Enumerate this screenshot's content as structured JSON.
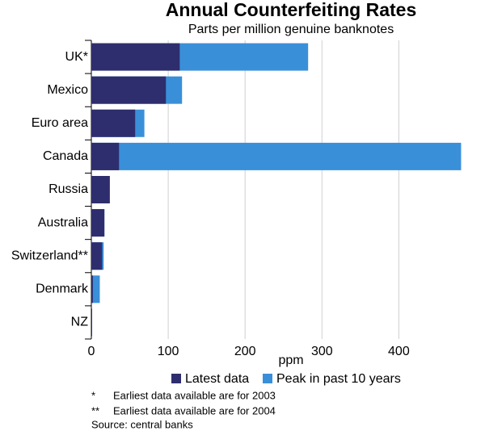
{
  "chart_data": {
    "type": "bar",
    "orientation": "horizontal",
    "overlap": true,
    "title": "Annual Counterfeiting Rates",
    "subtitle": "Parts per million genuine banknotes",
    "x_label": "ppm",
    "categories": [
      "UK*",
      "Mexico",
      "Euro area",
      "Canada",
      "Russia",
      "Australia",
      "Switzerland**",
      "Denmark",
      "NZ"
    ],
    "series": [
      {
        "name": "Peak in past 10 years",
        "color": "#3a8fd9",
        "values": [
          282,
          118,
          69,
          481,
          24,
          17,
          16,
          11,
          1
        ]
      },
      {
        "name": "Latest data",
        "color": "#2e2e6e",
        "values": [
          115,
          97,
          57,
          36,
          24,
          17,
          14,
          2,
          1
        ]
      }
    ],
    "xlim": [
      0,
      510
    ],
    "xticks": [
      0,
      100,
      200,
      300,
      400
    ],
    "grid": true,
    "footnotes": [
      {
        "marker": "*",
        "text": "Earliest data available are for 2003"
      },
      {
        "marker": "**",
        "text": "Earliest data available are for 2004"
      }
    ],
    "source": "Source: central banks"
  }
}
